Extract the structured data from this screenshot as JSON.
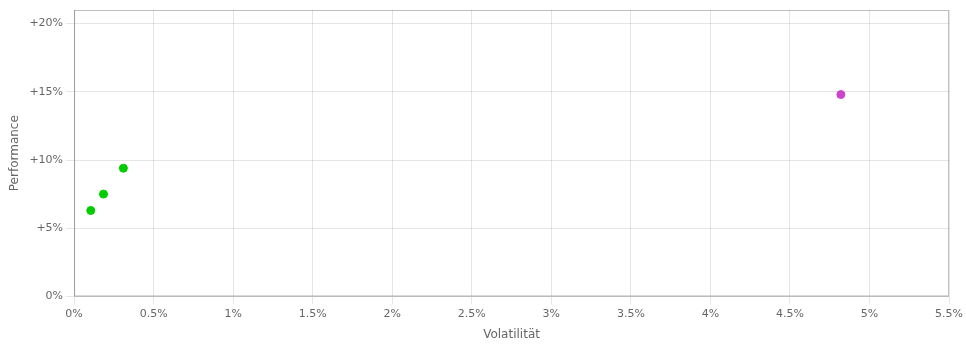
{
  "chart_data": {
    "type": "scatter",
    "xlabel": "Volatilität",
    "ylabel": "Performance",
    "x": [
      0.00105,
      0.00185,
      0.0031,
      0.0482
    ],
    "values": [
      0.063,
      0.075,
      0.094,
      0.148
    ],
    "colors": [
      "#00cc00",
      "#00cc00",
      "#00cc00",
      "#cc44cc"
    ],
    "xlim": [
      0,
      0.055
    ],
    "ylim": [
      0,
      0.21
    ],
    "xticks": [
      {
        "value": 0,
        "label": "0%"
      },
      {
        "value": 0.005,
        "label": "0.5%"
      },
      {
        "value": 0.01,
        "label": "1%"
      },
      {
        "value": 0.015,
        "label": "1.5%"
      },
      {
        "value": 0.02,
        "label": "2%"
      },
      {
        "value": 0.025,
        "label": "2.5%"
      },
      {
        "value": 0.03,
        "label": "3%"
      },
      {
        "value": 0.035,
        "label": "3.5%"
      },
      {
        "value": 0.04,
        "label": "4%"
      },
      {
        "value": 0.045,
        "label": "4.5%"
      },
      {
        "value": 0.05,
        "label": "5%"
      },
      {
        "value": 0.055,
        "label": "5.5%"
      }
    ],
    "yticks": [
      {
        "value": 0,
        "label": "0%"
      },
      {
        "value": 0.05,
        "label": "+5%"
      },
      {
        "value": 0.1,
        "label": "+10%"
      },
      {
        "value": 0.15,
        "label": "+15%"
      },
      {
        "value": 0.2,
        "label": "+20%"
      }
    ],
    "grid": true
  }
}
